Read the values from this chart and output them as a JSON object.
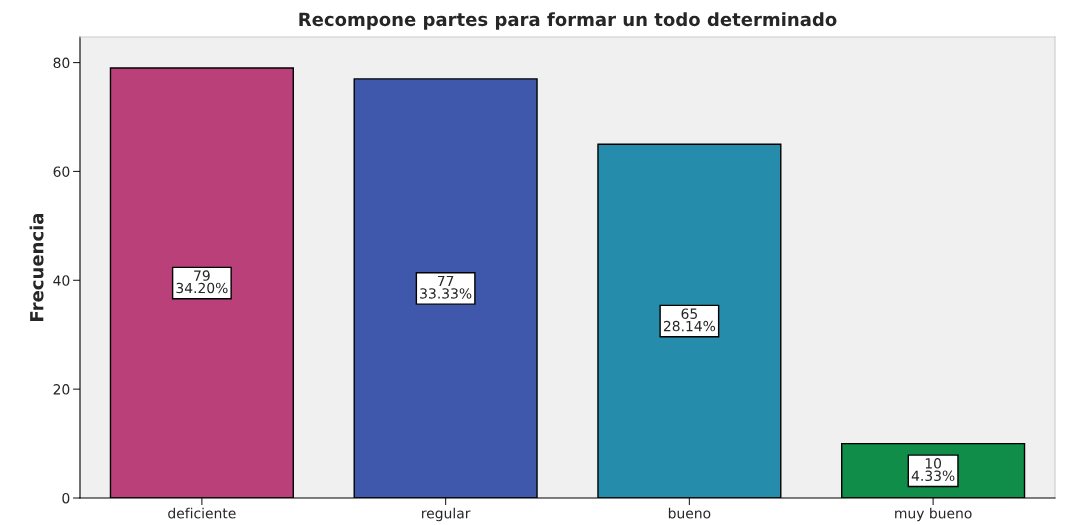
{
  "chart_data": {
    "type": "bar",
    "title": "Recompone partes para formar un todo determinado",
    "ylabel": "Frecuencia",
    "categories": [
      "deficiente",
      "regular",
      "bueno",
      "muy bueno"
    ],
    "values": [
      79,
      77,
      65,
      10
    ],
    "colors": [
      "#b94079",
      "#3f58ab",
      "#258cac",
      "#118d4a"
    ],
    "value_labels": [
      "79\n34.20%",
      "77\n33.33%",
      "65\n28.14%",
      "10\n4.33%"
    ],
    "ylim": [
      0,
      84.7
    ],
    "yticks": [
      0,
      20,
      40,
      60,
      80
    ],
    "grid": false,
    "legend": false
  }
}
